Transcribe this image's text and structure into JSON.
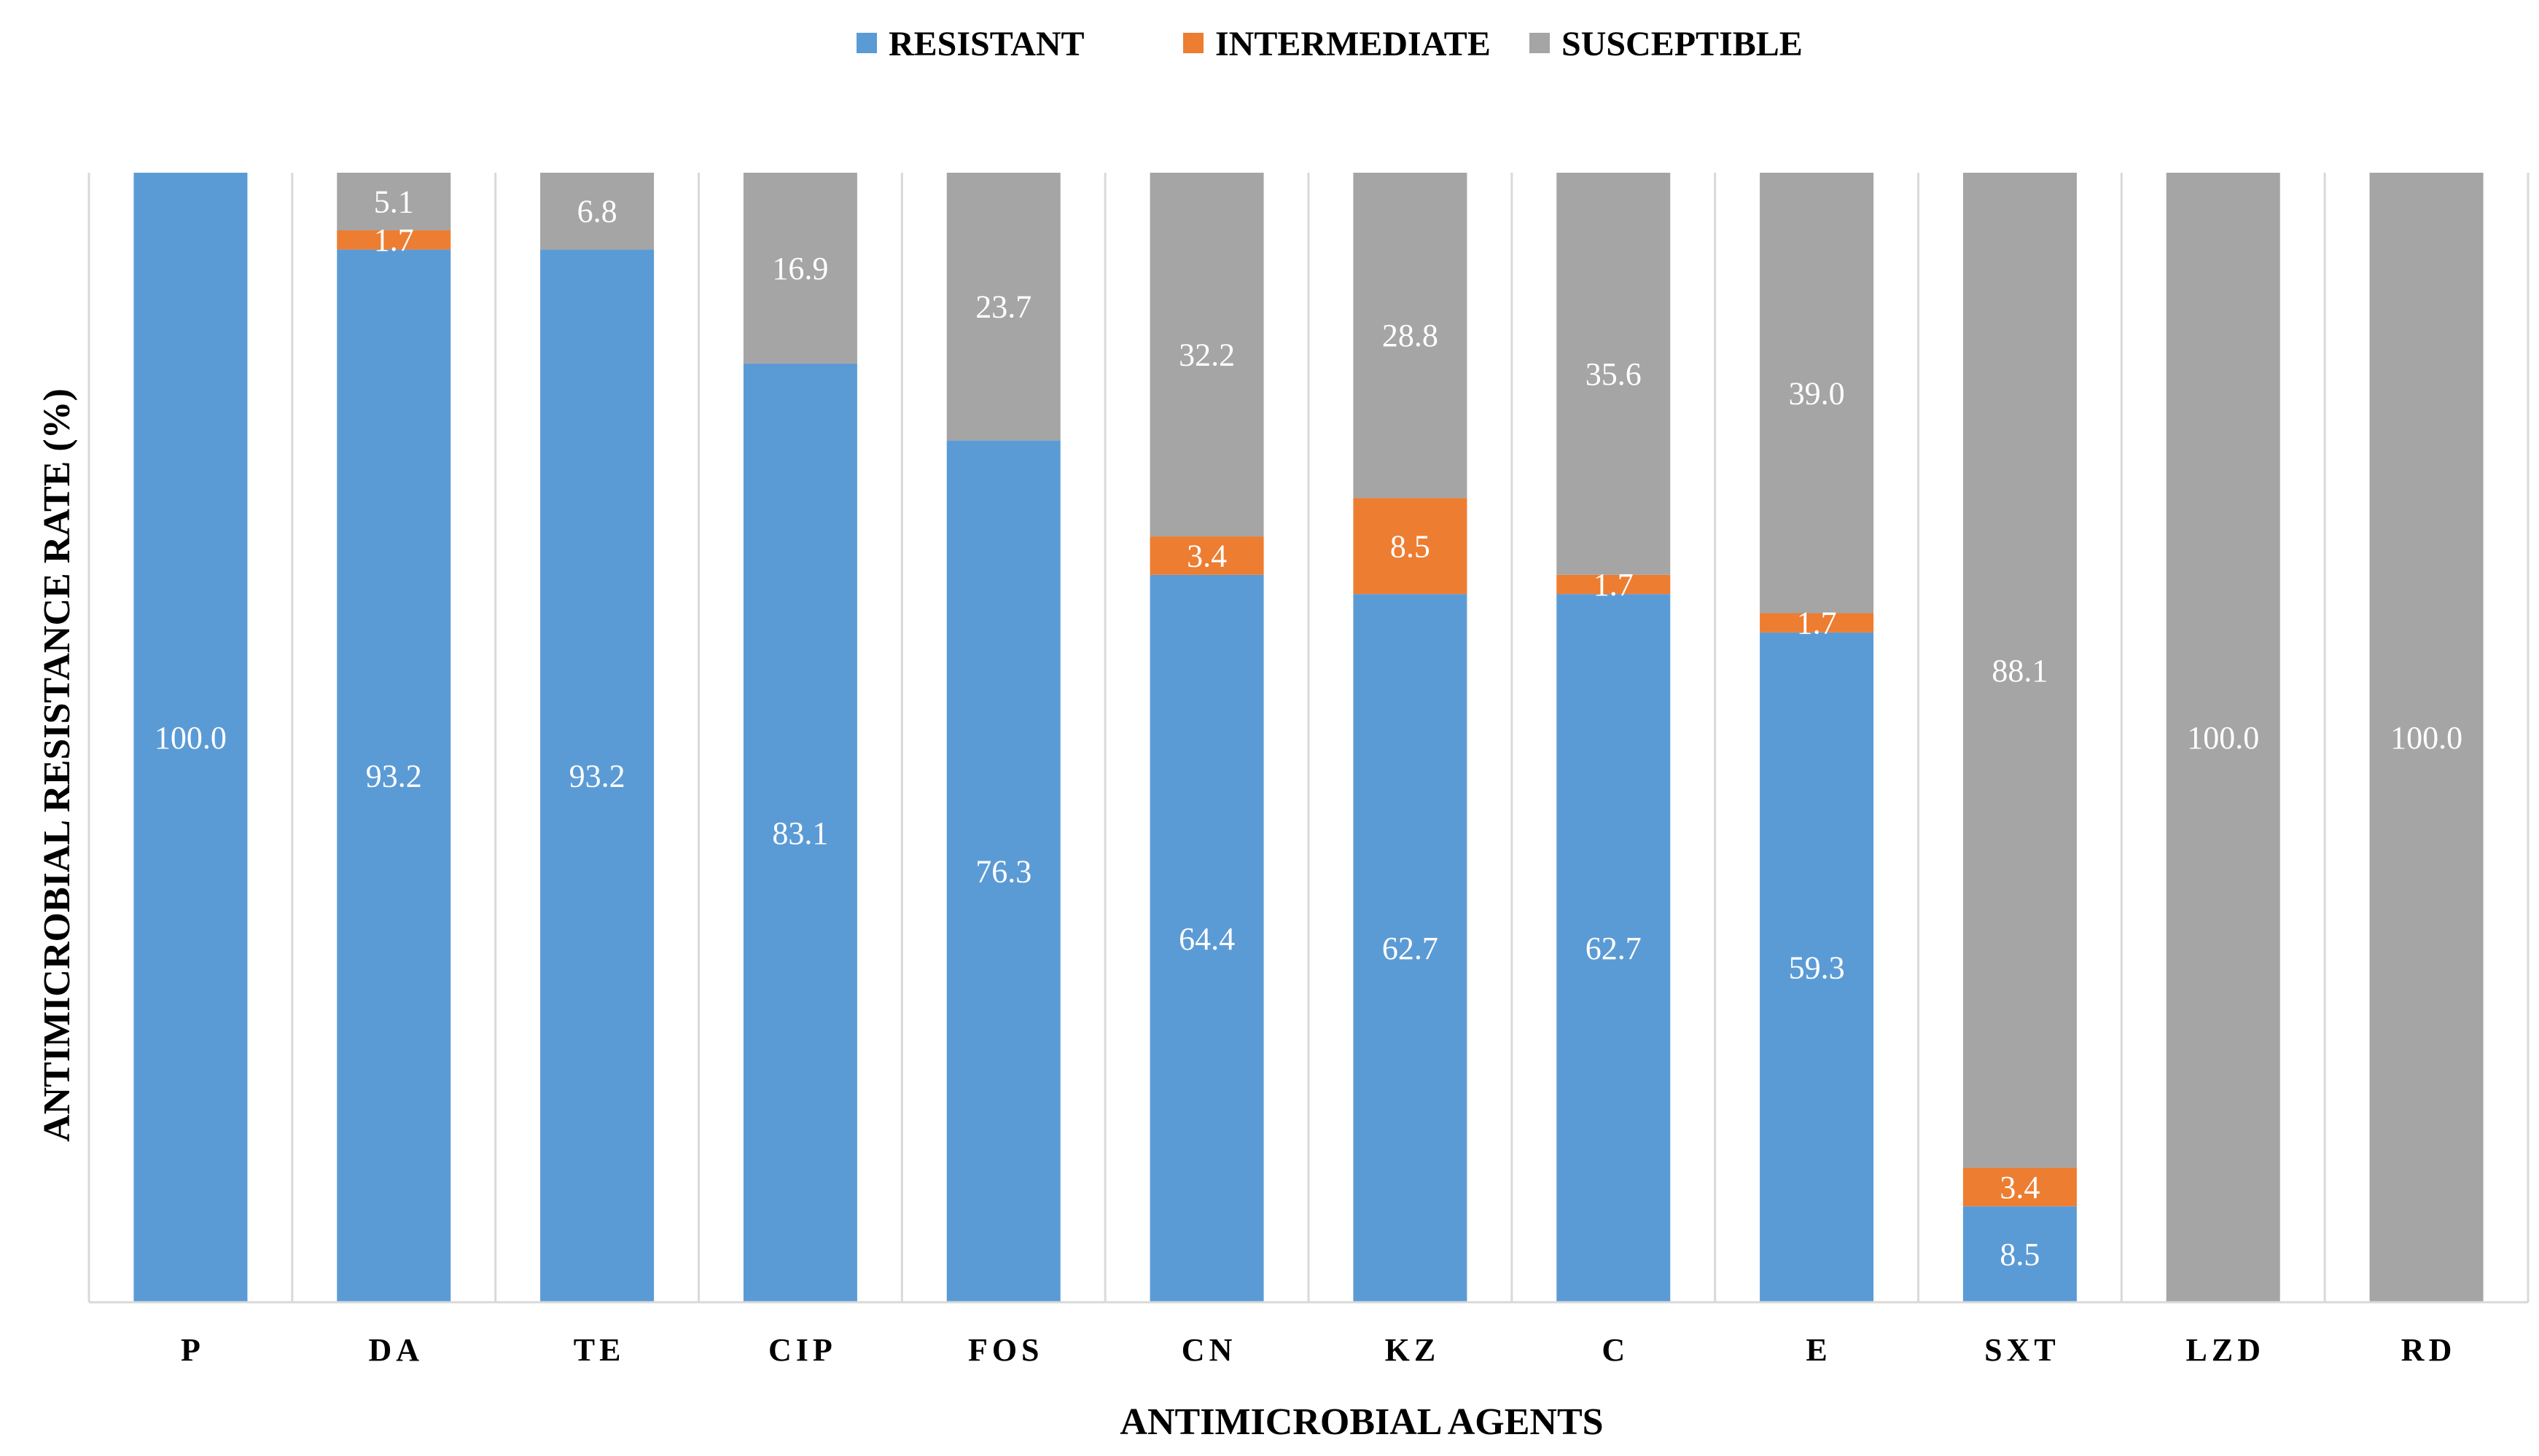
{
  "chart_data": {
    "type": "bar",
    "stacked": true,
    "orientation": "vertical",
    "title": "",
    "xlabel": "ANTIMICROBIAL AGENTS",
    "ylabel": "ANTIMICROBIAL RESISTANCE  RATE (%)",
    "ylim": [
      0,
      100
    ],
    "grid": true,
    "legend_position": "top-center",
    "categories": [
      "P",
      "DA",
      "TE",
      "CIP",
      "FOS",
      "CN",
      "KZ",
      "C",
      "E",
      "SXT",
      "LZD",
      "RD"
    ],
    "series": [
      {
        "name": "RESISTANT",
        "color": "#5B9BD5",
        "values": [
          100.0,
          93.2,
          93.2,
          83.1,
          76.3,
          64.4,
          62.7,
          62.7,
          59.3,
          8.5,
          0,
          0
        ],
        "labels": [
          "100.0",
          "93.2",
          "93.2",
          "83.1",
          "76.3",
          "64.4",
          "62.7",
          "62.7",
          "59.3",
          "8.5",
          "",
          ""
        ]
      },
      {
        "name": "INTERMEDIATE",
        "color": "#ED7D31",
        "values": [
          0,
          1.7,
          0,
          0,
          0,
          3.4,
          8.5,
          1.7,
          1.7,
          3.4,
          0,
          0
        ],
        "labels": [
          "",
          "1.7",
          "",
          "",
          "",
          "3.4",
          "8.5",
          "1.7",
          "1.7",
          "3.4",
          "",
          ""
        ]
      },
      {
        "name": "SUSCEPTIBLE",
        "color": "#A5A5A5",
        "values": [
          0,
          5.1,
          6.8,
          16.9,
          23.7,
          32.2,
          28.8,
          35.6,
          39.0,
          88.1,
          100.0,
          100.0
        ],
        "labels": [
          "",
          "5.1",
          "6.8",
          "16.9",
          "23.7",
          "32.2",
          "28.8",
          "35.6",
          "39.0",
          "88.1",
          "100.0",
          "100.0"
        ]
      }
    ]
  }
}
